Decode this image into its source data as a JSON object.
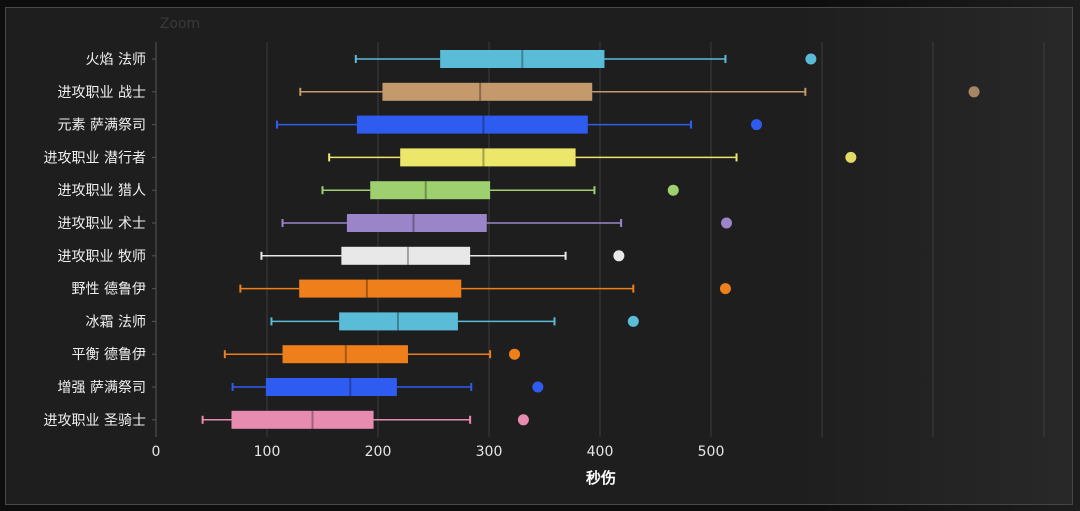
{
  "chart_data": {
    "type": "box",
    "title": "Zoom",
    "xlabel": "秒伤",
    "ylabel": "",
    "xlim": [
      0,
      800
    ],
    "xticks": [
      0,
      100,
      200,
      300,
      400,
      500
    ],
    "grid": true,
    "categories": [
      "火焰 法师",
      "进攻职业 战士",
      "元素 萨满祭司",
      "进攻职业 潜行者",
      "进攻职业 猎人",
      "进攻职业 术士",
      "进攻职业 牧师",
      "野性 德鲁伊",
      "冰霜 法师",
      "平衡 德鲁伊",
      "增强 萨满祭司",
      "进攻职业 圣骑士"
    ],
    "series": [
      {
        "name": "火焰 法师",
        "min": 180,
        "q1": 256,
        "median": 330,
        "q3": 404,
        "max": 513,
        "outliers": [
          590
        ],
        "color": "#5bbcd8"
      },
      {
        "name": "进攻职业 战士",
        "min": 130,
        "q1": 204,
        "median": 292,
        "q3": 393,
        "max": 585,
        "outliers": [
          737
        ],
        "color": "#c49a6c"
      },
      {
        "name": "元素 萨满祭司",
        "min": 109,
        "q1": 181,
        "median": 295,
        "q3": 389,
        "max": 482,
        "outliers": [
          541
        ],
        "color": "#2f5cf0"
      },
      {
        "name": "进攻职业 潜行者",
        "min": 156,
        "q1": 220,
        "median": 295,
        "q3": 378,
        "max": 523,
        "outliers": [
          626
        ],
        "color": "#ece66a"
      },
      {
        "name": "进攻职业 猎人",
        "min": 150,
        "q1": 193,
        "median": 243,
        "q3": 301,
        "max": 395,
        "outliers": [
          466
        ],
        "color": "#9fd06f"
      },
      {
        "name": "进攻职业 术士",
        "min": 114,
        "q1": 172,
        "median": 232,
        "q3": 298,
        "max": 419,
        "outliers": [
          514
        ],
        "color": "#9b85c9"
      },
      {
        "name": "进攻职业 牧师",
        "min": 95,
        "q1": 167,
        "median": 227,
        "q3": 283,
        "max": 369,
        "outliers": [
          417
        ],
        "color": "#e8e8e8"
      },
      {
        "name": "野性 德鲁伊",
        "min": 76,
        "q1": 129,
        "median": 190,
        "q3": 275,
        "max": 430,
        "outliers": [
          513
        ],
        "color": "#ee7f1b"
      },
      {
        "name": "冰霜 法师",
        "min": 104,
        "q1": 165,
        "median": 218,
        "q3": 272,
        "max": 359,
        "outliers": [
          430
        ],
        "color": "#5bbcd8"
      },
      {
        "name": "平衡 德鲁伊",
        "min": 62,
        "q1": 114,
        "median": 171,
        "q3": 227,
        "max": 301,
        "outliers": [
          323
        ],
        "color": "#ee7f1b"
      },
      {
        "name": "增强 萨满祭司",
        "min": 69,
        "q1": 99,
        "median": 175,
        "q3": 217,
        "max": 284,
        "outliers": [
          344
        ],
        "color": "#2f5cf0"
      },
      {
        "name": "进攻职业 圣骑士",
        "min": 42,
        "q1": 68,
        "median": 141,
        "q3": 196,
        "max": 283,
        "outliers": [
          331
        ],
        "color": "#e88bb0"
      }
    ]
  }
}
